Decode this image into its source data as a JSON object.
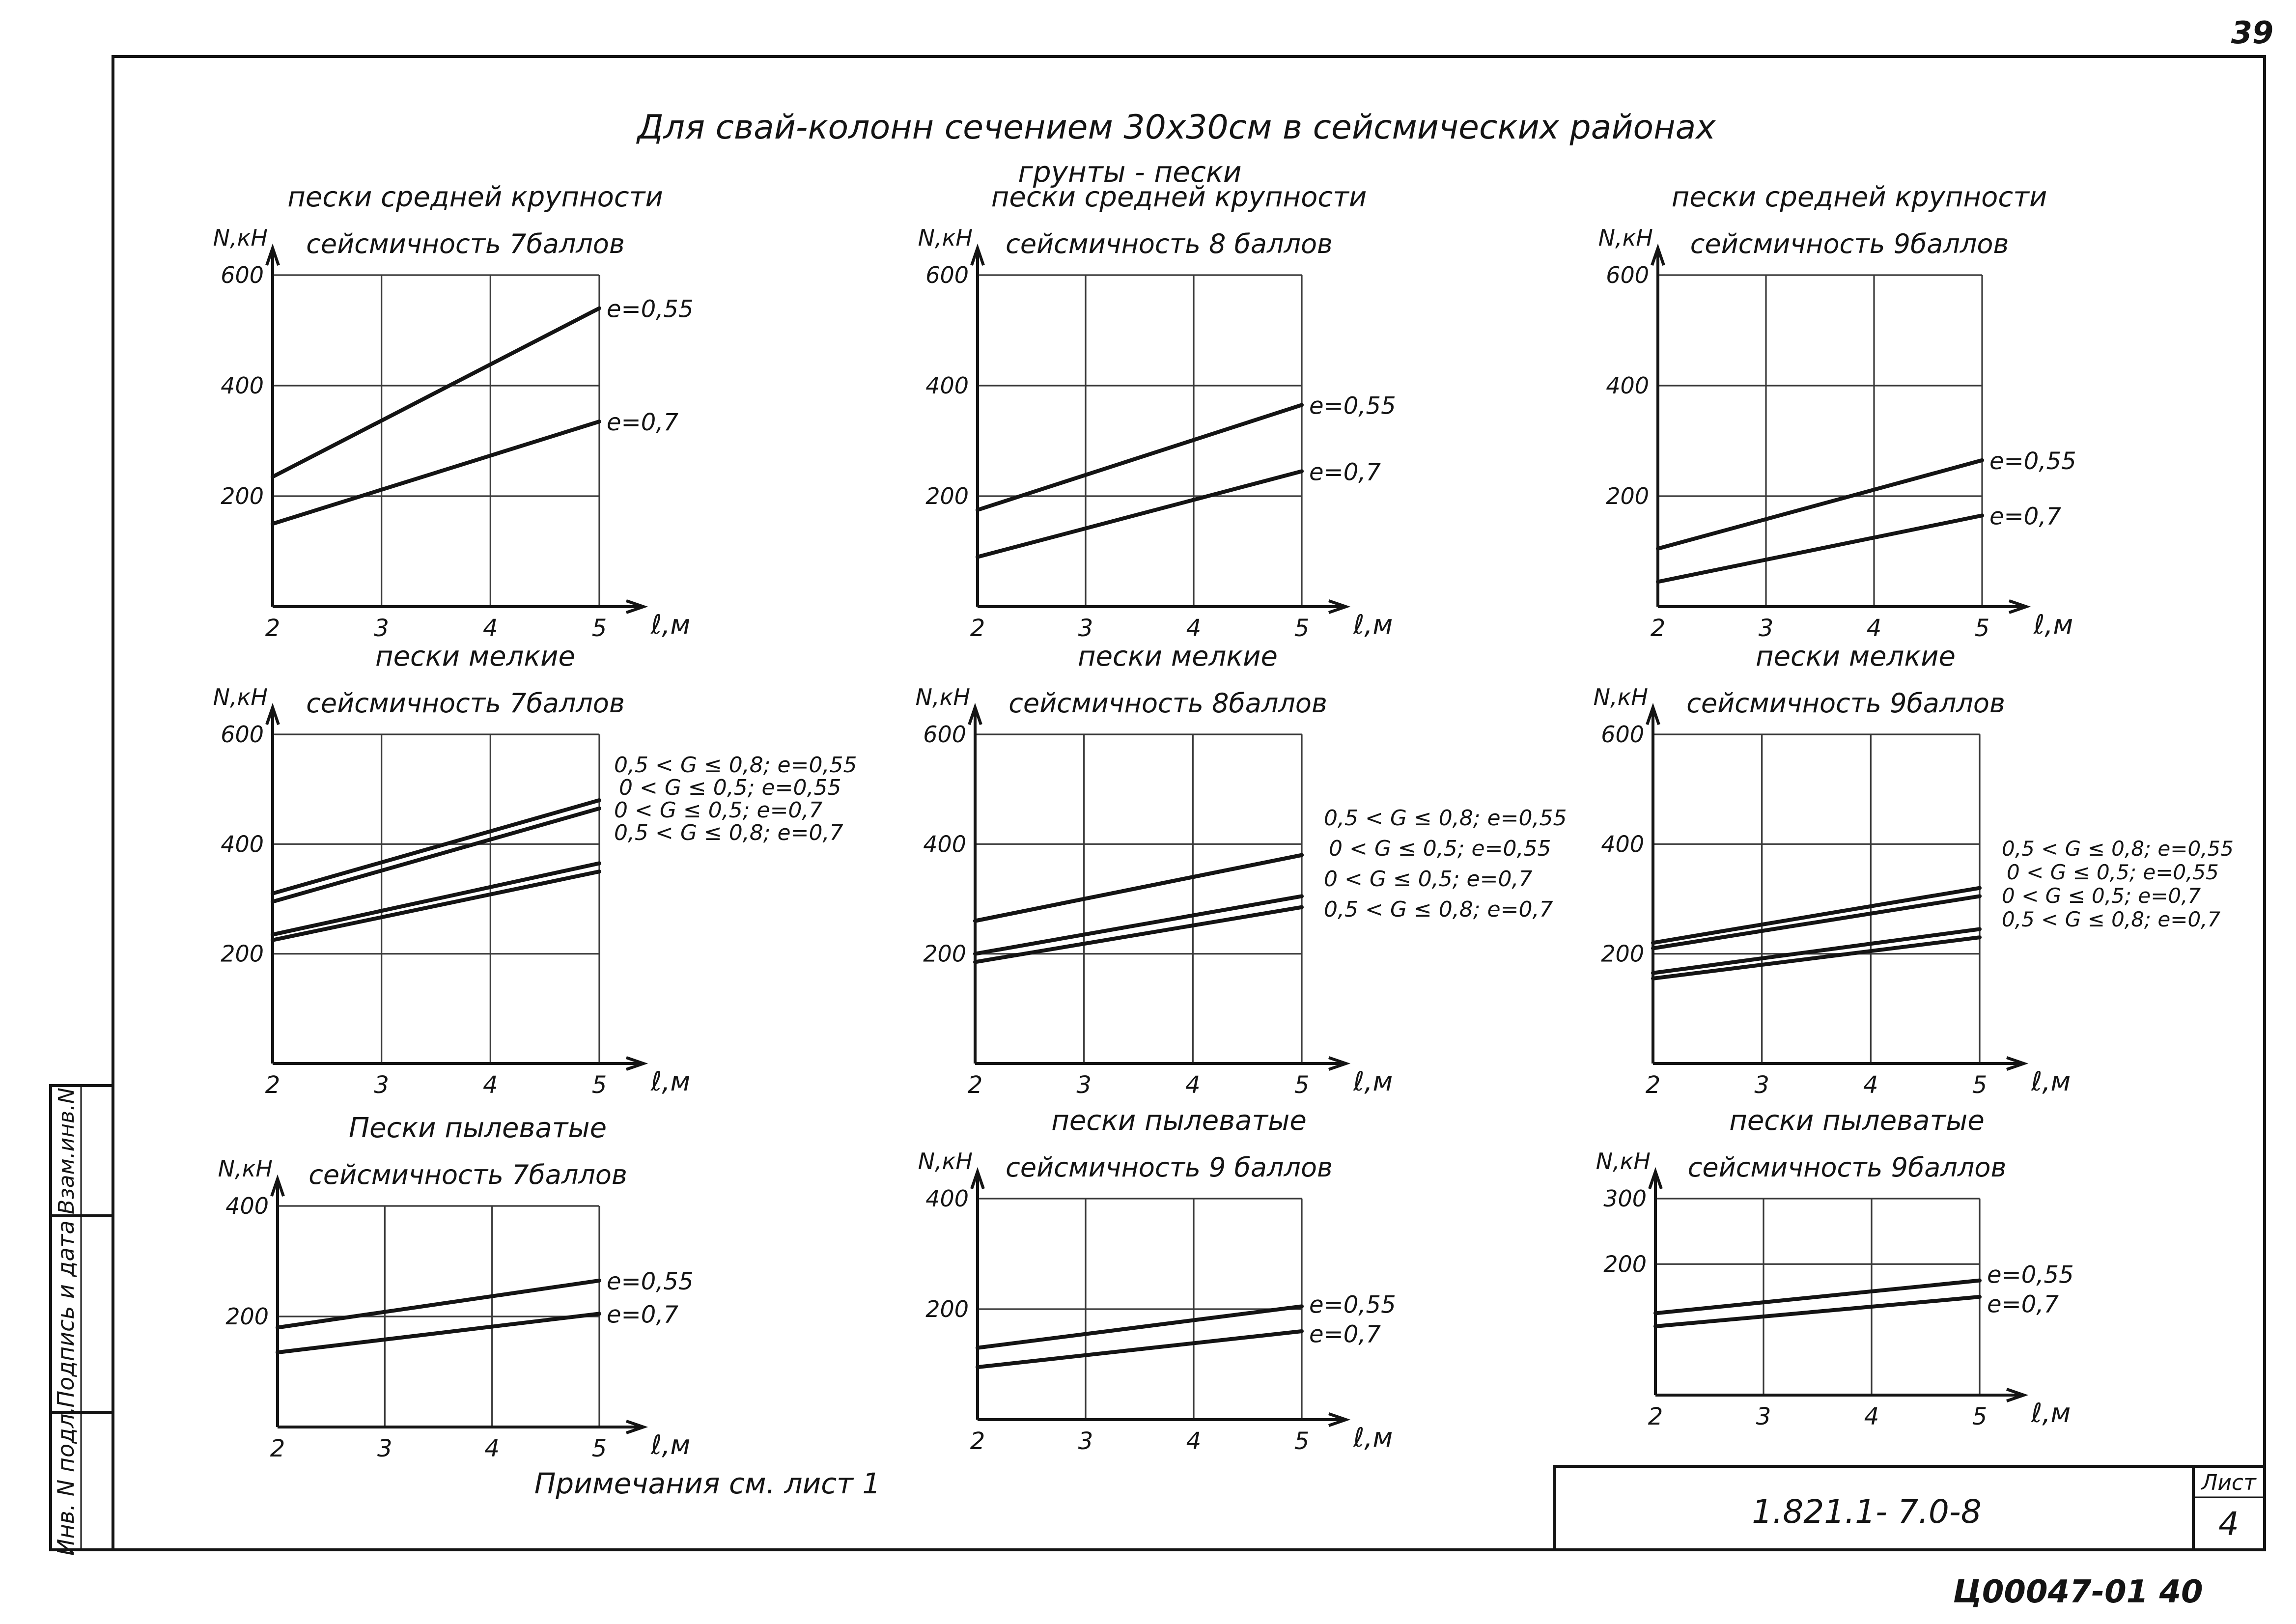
{
  "sheet": {
    "page_number": "39",
    "title": "Для свай-колонн сечением 30х30см в сейсмических районах",
    "subtitle": "грунты - пески",
    "note": "Примечания см. лист 1",
    "doc_code": "1.821.1- 7.0-8",
    "sheet_label": "Лист",
    "sheet_number": "4",
    "archive_code": "Ц00047-01  40",
    "side_fields": [
      "Инв. N подл.",
      "Подпись и дата",
      "Взам.инв.N"
    ]
  },
  "chart_data": [
    {
      "type": "line",
      "title": "пески средней крупности",
      "subtitle": "сейсмичность 7баллов",
      "ylabel": "N,кН",
      "xlabel": "ℓ,м",
      "xlim": [
        2,
        5
      ],
      "ylim": [
        0,
        600
      ],
      "x_ticks": [
        "2",
        "3",
        "4",
        "5"
      ],
      "y_ticks": [
        "200",
        "400",
        "600"
      ],
      "grid": true,
      "x": [
        2,
        5
      ],
      "series": [
        {
          "name": "е=0,55",
          "values": [
            235,
            540
          ]
        },
        {
          "name": "е=0,7",
          "values": [
            150,
            335
          ]
        }
      ]
    },
    {
      "type": "line",
      "title": "пески средней крупности",
      "subtitle": "сейсмичность 8 баллов",
      "ylabel": "N,кН",
      "xlabel": "ℓ,м",
      "xlim": [
        2,
        5
      ],
      "ylim": [
        0,
        600
      ],
      "x_ticks": [
        "2",
        "3",
        "4",
        "5"
      ],
      "y_ticks": [
        "200",
        "400",
        "600"
      ],
      "grid": true,
      "x": [
        2,
        5
      ],
      "series": [
        {
          "name": "е=0,55",
          "values": [
            175,
            365
          ]
        },
        {
          "name": "е=0,7",
          "values": [
            90,
            245
          ]
        }
      ]
    },
    {
      "type": "line",
      "title": "пески средней крупности",
      "subtitle": "сейсмичность 9баллов",
      "ylabel": "N,кН",
      "xlabel": "ℓ,м",
      "xlim": [
        2,
        5
      ],
      "ylim": [
        0,
        600
      ],
      "x_ticks": [
        "2",
        "3",
        "4",
        "5"
      ],
      "y_ticks": [
        "200",
        "400",
        "600"
      ],
      "grid": true,
      "x": [
        2,
        5
      ],
      "series": [
        {
          "name": "е=0,55",
          "values": [
            105,
            265
          ]
        },
        {
          "name": "е=0,7",
          "values": [
            45,
            165
          ]
        }
      ]
    },
    {
      "type": "line",
      "title": "пески мелкие",
      "subtitle": "сейсмичность 7баллов",
      "ylabel": "N,кН",
      "xlabel": "ℓ,м",
      "xlim": [
        2,
        5
      ],
      "ylim": [
        0,
        600
      ],
      "x_ticks": [
        "2",
        "3",
        "4",
        "5"
      ],
      "y_ticks": [
        "200",
        "400",
        "600"
      ],
      "grid": true,
      "x": [
        2,
        5
      ],
      "series": [
        {
          "name": "0,5 < G ≤ 0,8; е=0,55",
          "values": [
            310,
            480
          ]
        },
        {
          "name": "0 < G ≤ 0,5; е=0,55",
          "values": [
            295,
            465
          ]
        },
        {
          "name": "0 < G ≤ 0,5; е=0,7",
          "values": [
            235,
            365
          ]
        },
        {
          "name": "0,5 < G ≤ 0,8; е=0,7",
          "values": [
            225,
            350
          ]
        }
      ]
    },
    {
      "type": "line",
      "title": "пески мелкие",
      "subtitle": "сейсмичность 8баллов",
      "ylabel": "N,кН",
      "xlabel": "ℓ,м",
      "xlim": [
        2,
        5
      ],
      "ylim": [
        0,
        600
      ],
      "x_ticks": [
        "2",
        "3",
        "4",
        "5"
      ],
      "y_ticks": [
        "200",
        "400",
        "600"
      ],
      "grid": true,
      "x": [
        2,
        5
      ],
      "series": [
        {
          "name": "0,5 < G ≤ 0,8; е=0,55",
          "values": [
            260,
            380
          ]
        },
        {
          "name": "0 < G ≤ 0,5; е=0,55",
          "values": [
            260,
            380
          ]
        },
        {
          "name": "0 < G ≤ 0,5; е=0,7",
          "values": [
            200,
            305
          ]
        },
        {
          "name": "0,5 < G ≤ 0,8; е=0,7",
          "values": [
            185,
            285
          ]
        }
      ]
    },
    {
      "type": "line",
      "title": "пески мелкие",
      "subtitle": "сейсмичность 9баллов",
      "ylabel": "N,кН",
      "xlabel": "ℓ,м",
      "xlim": [
        2,
        5
      ],
      "ylim": [
        0,
        600
      ],
      "x_ticks": [
        "2",
        "3",
        "4",
        "5"
      ],
      "y_ticks": [
        "200",
        "400",
        "600"
      ],
      "grid": true,
      "x": [
        2,
        5
      ],
      "series": [
        {
          "name": "0,5 < G ≤ 0,8; е=0,55",
          "values": [
            220,
            320
          ]
        },
        {
          "name": "0 < G ≤ 0,5; е=0,55",
          "values": [
            210,
            305
          ]
        },
        {
          "name": "0 < G ≤ 0,5; е=0,7",
          "values": [
            165,
            245
          ]
        },
        {
          "name": "0,5 < G ≤ 0,8; е=0,7",
          "values": [
            155,
            230
          ]
        }
      ]
    },
    {
      "type": "line",
      "title": "Пески пылеватые",
      "subtitle": "сейсмичность 7баллов",
      "ylabel": "N,кН",
      "xlabel": "ℓ,м",
      "xlim": [
        2,
        5
      ],
      "ylim": [
        0,
        400
      ],
      "x_ticks": [
        "2",
        "3",
        "4",
        "5"
      ],
      "y_ticks": [
        "200",
        "400"
      ],
      "grid": true,
      "x": [
        2,
        5
      ],
      "series": [
        {
          "name": "е=0,55",
          "values": [
            180,
            265
          ]
        },
        {
          "name": "е=0,7",
          "values": [
            135,
            205
          ]
        }
      ]
    },
    {
      "type": "line",
      "title": "пески пылеватые",
      "subtitle": "сейсмичность 9 баллов",
      "ylabel": "N,кН",
      "xlabel": "ℓ,м",
      "xlim": [
        2,
        5
      ],
      "ylim": [
        0,
        400
      ],
      "x_ticks": [
        "2",
        "3",
        "4",
        "5"
      ],
      "y_ticks": [
        "200",
        "400"
      ],
      "grid": true,
      "x": [
        2,
        5
      ],
      "series": [
        {
          "name": "е=0,55",
          "values": [
            130,
            205
          ]
        },
        {
          "name": "е=0,7",
          "values": [
            95,
            160
          ]
        }
      ]
    },
    {
      "type": "line",
      "title": "пески пылеватые",
      "subtitle": "сейсмичность 9баллов",
      "ylabel": "N,кН",
      "xlabel": "ℓ,м",
      "xlim": [
        2,
        5
      ],
      "ylim": [
        0,
        300
      ],
      "x_ticks": [
        "2",
        "3",
        "4",
        "5"
      ],
      "y_ticks": [
        "200",
        "300"
      ],
      "grid": true,
      "x": [
        2,
        5
      ],
      "series": [
        {
          "name": "е=0,55",
          "values": [
            125,
            175
          ]
        },
        {
          "name": "е=0,7",
          "values": [
            105,
            150
          ]
        }
      ]
    }
  ]
}
